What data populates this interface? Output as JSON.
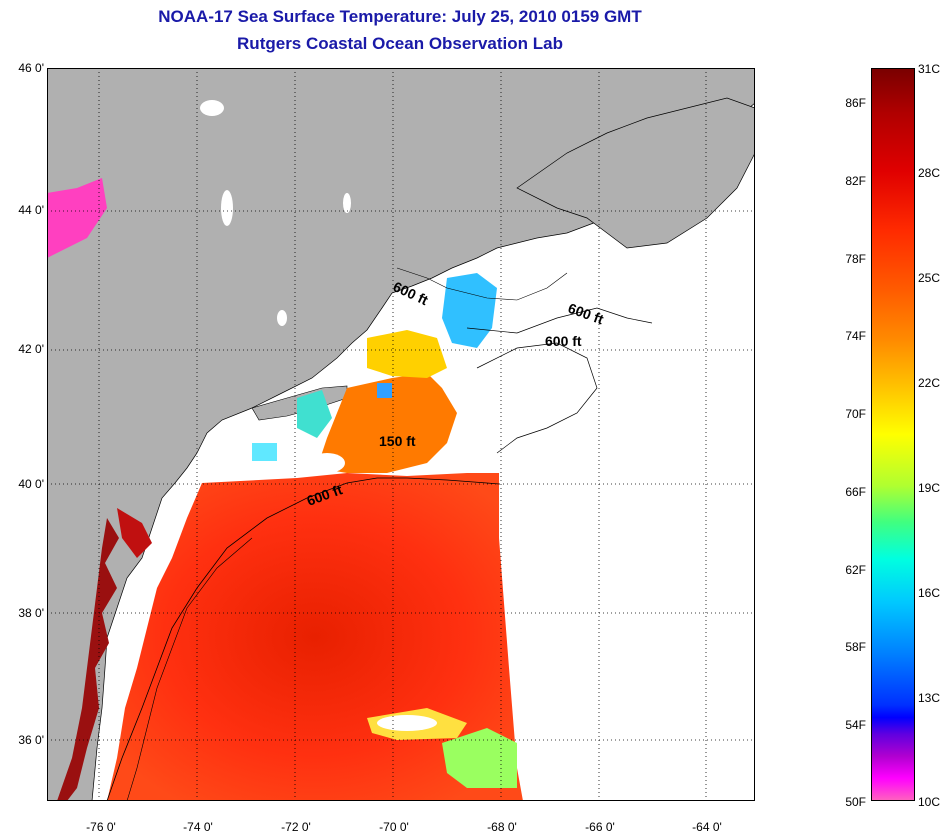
{
  "title": {
    "line1": "NOAA-17 Sea Surface Temperature:  July 25, 2010 0159 GMT",
    "line2": "Rutgers Coastal Ocean Observation Lab"
  },
  "map": {
    "lat_labels": [
      "46 0'",
      "44 0'",
      "42 0'",
      "40 0'",
      "38 0'",
      "36 0'"
    ],
    "lon_labels": [
      "-76 0'",
      "-74 0'",
      "-72 0'",
      "-70 0'",
      "-68 0'",
      "-66 0'",
      "-64 0'"
    ],
    "isobath_labels": [
      "600 ft",
      "600 ft",
      "600 ft",
      "150 ft",
      "600 ft"
    ],
    "colors": {
      "land": "#b0b0b0",
      "ocean_warm": "#ff3a10",
      "title": "#1a1aa8"
    }
  },
  "colorbar": {
    "fahrenheit_labels": [
      "86F",
      "82F",
      "78F",
      "74F",
      "70F",
      "66F",
      "62F",
      "58F",
      "54F",
      "50F"
    ],
    "celsius_labels": [
      "31C",
      "28C",
      "25C",
      "22C",
      "19C",
      "16C",
      "13C",
      "10C"
    ]
  }
}
